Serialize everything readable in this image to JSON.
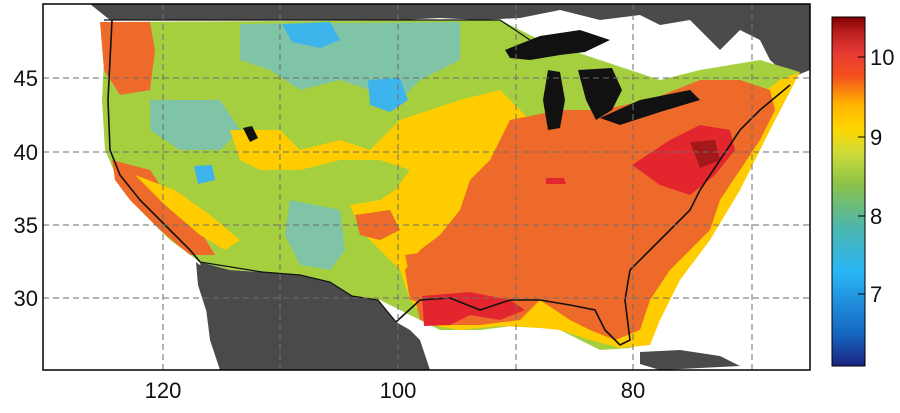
{
  "map": {
    "x_ticks": [
      "120",
      "100",
      "80"
    ],
    "y_ticks": [
      "45",
      "40",
      "35",
      "30"
    ],
    "colors": {
      "land": "#4a4a4a",
      "water": "#ffffff",
      "grid": "#6e6e6e",
      "coast": "#111111",
      "lake": "#111111"
    }
  },
  "colorbar": {
    "ticks": [
      "10",
      "9",
      "8",
      "7"
    ],
    "stops": [
      "#1a237e",
      "#1565c0",
      "#29b6f6",
      "#4db6ac",
      "#8bc34a",
      "#cddc39",
      "#ffd600",
      "#ffb300",
      "#f4511e",
      "#e53935",
      "#b71c1c",
      "#7f0000"
    ]
  }
}
